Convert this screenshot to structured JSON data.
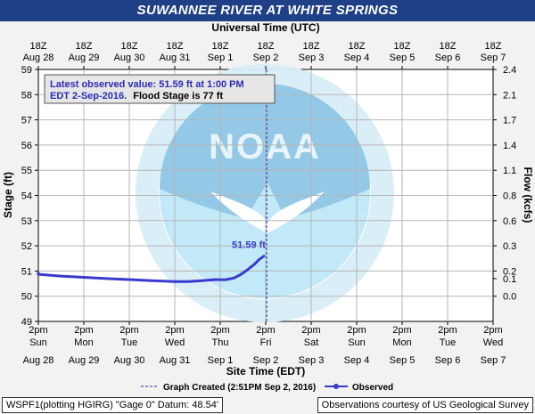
{
  "chart_data": {
    "type": "line",
    "title": "SUWANNEE RIVER AT WHITE SPRINGS",
    "top_axis_title": "Universal Time (UTC)",
    "top_ticks": [
      {
        "hour": "18Z",
        "day": "Aug 28"
      },
      {
        "hour": "18Z",
        "day": "Aug 29"
      },
      {
        "hour": "18Z",
        "day": "Aug 30"
      },
      {
        "hour": "18Z",
        "day": "Aug 31"
      },
      {
        "hour": "18Z",
        "day": "Sep 1"
      },
      {
        "hour": "18Z",
        "day": "Sep 2"
      },
      {
        "hour": "18Z",
        "day": "Sep 3"
      },
      {
        "hour": "18Z",
        "day": "Sep 4"
      },
      {
        "hour": "18Z",
        "day": "Sep 5"
      },
      {
        "hour": "18Z",
        "day": "Sep 6"
      },
      {
        "hour": "18Z",
        "day": "Sep 7"
      }
    ],
    "bottom_axis_title": "Site Time (EDT)",
    "bottom_ticks": [
      {
        "time": "2pm",
        "weekday": "Sun",
        "date": "Aug 28"
      },
      {
        "time": "2pm",
        "weekday": "Mon",
        "date": "Aug 29"
      },
      {
        "time": "2pm",
        "weekday": "Tue",
        "date": "Aug 30"
      },
      {
        "time": "2pm",
        "weekday": "Wed",
        "date": "Aug 31"
      },
      {
        "time": "2pm",
        "weekday": "Thu",
        "date": "Sep 1"
      },
      {
        "time": "2pm",
        "weekday": "Fri",
        "date": "Sep 2"
      },
      {
        "time": "2pm",
        "weekday": "Sat",
        "date": "Sep 3"
      },
      {
        "time": "2pm",
        "weekday": "Sun",
        "date": "Sep 4"
      },
      {
        "time": "2pm",
        "weekday": "Mon",
        "date": "Sep 5"
      },
      {
        "time": "2pm",
        "weekday": "Tue",
        "date": "Sep 6"
      },
      {
        "time": "2pm",
        "weekday": "Wed",
        "date": "Sep 7"
      }
    ],
    "ylabel_left": "Stage (ft)",
    "ylabel_right": "Flow (kcfs)",
    "ylim": [
      49,
      59
    ],
    "y_ticks_left": [
      "49",
      "50",
      "51",
      "52",
      "53",
      "54",
      "55",
      "56",
      "57",
      "58",
      "59"
    ],
    "y_ticks_right": [
      {
        "label": "0.0",
        "stage": 50.0
      },
      {
        "label": "0.1",
        "stage": 50.7
      },
      {
        "label": "0.2",
        "stage": 51.0
      },
      {
        "label": "0.3",
        "stage": 52.0
      },
      {
        "label": "0.6",
        "stage": 53.0
      },
      {
        "label": "0.8",
        "stage": 54.0
      },
      {
        "label": "1.1",
        "stage": 55.0
      },
      {
        "label": "1.4",
        "stage": 56.0
      },
      {
        "label": "1.7",
        "stage": 57.0
      },
      {
        "label": "2.1",
        "stage": 58.0
      },
      {
        "label": "2.4",
        "stage": 59.0
      }
    ],
    "x_days_range": [
      0,
      10
    ],
    "graph_created_day": 5.02,
    "series": [
      {
        "name": "Observed",
        "color": "#3a3acc",
        "x_days": [
          -0.3,
          0,
          0.5,
          1.0,
          1.5,
          2.0,
          2.5,
          3.0,
          3.3,
          3.6,
          3.9,
          4.1,
          4.3,
          4.45,
          4.6,
          4.75,
          4.85,
          4.96
        ],
        "y": [
          50.93,
          50.87,
          50.8,
          50.75,
          50.7,
          50.66,
          50.62,
          50.58,
          50.58,
          50.62,
          50.66,
          50.65,
          50.72,
          50.86,
          51.05,
          51.27,
          51.45,
          51.59
        ]
      }
    ],
    "latest_label": "51.59 ft",
    "info_box": {
      "line1": "Latest observed value: 51.59 ft at 1:00 PM",
      "line2_blue": "EDT 2-Sep-2016.",
      "line2_black": "Flood Stage is 77 ft"
    },
    "legend": {
      "graph_created": "Graph Created (2:51PM Sep 2, 2016)",
      "observed": "Observed"
    },
    "watermark_text": "NOAA",
    "colors": {
      "title_bg": "#1f3f86",
      "series": "#3a3acc",
      "info_text": "#2b2bb8",
      "watermark_light": "#bfe8f7",
      "watermark_dark": "#8fc6e6",
      "watermark_text": "#9bc9e3"
    }
  },
  "footer": {
    "left": "WSPF1(plotting HGIRG) \"Gage 0\" Datum: 48.54'",
    "right": "Observations courtesy of US Geological Survey"
  }
}
